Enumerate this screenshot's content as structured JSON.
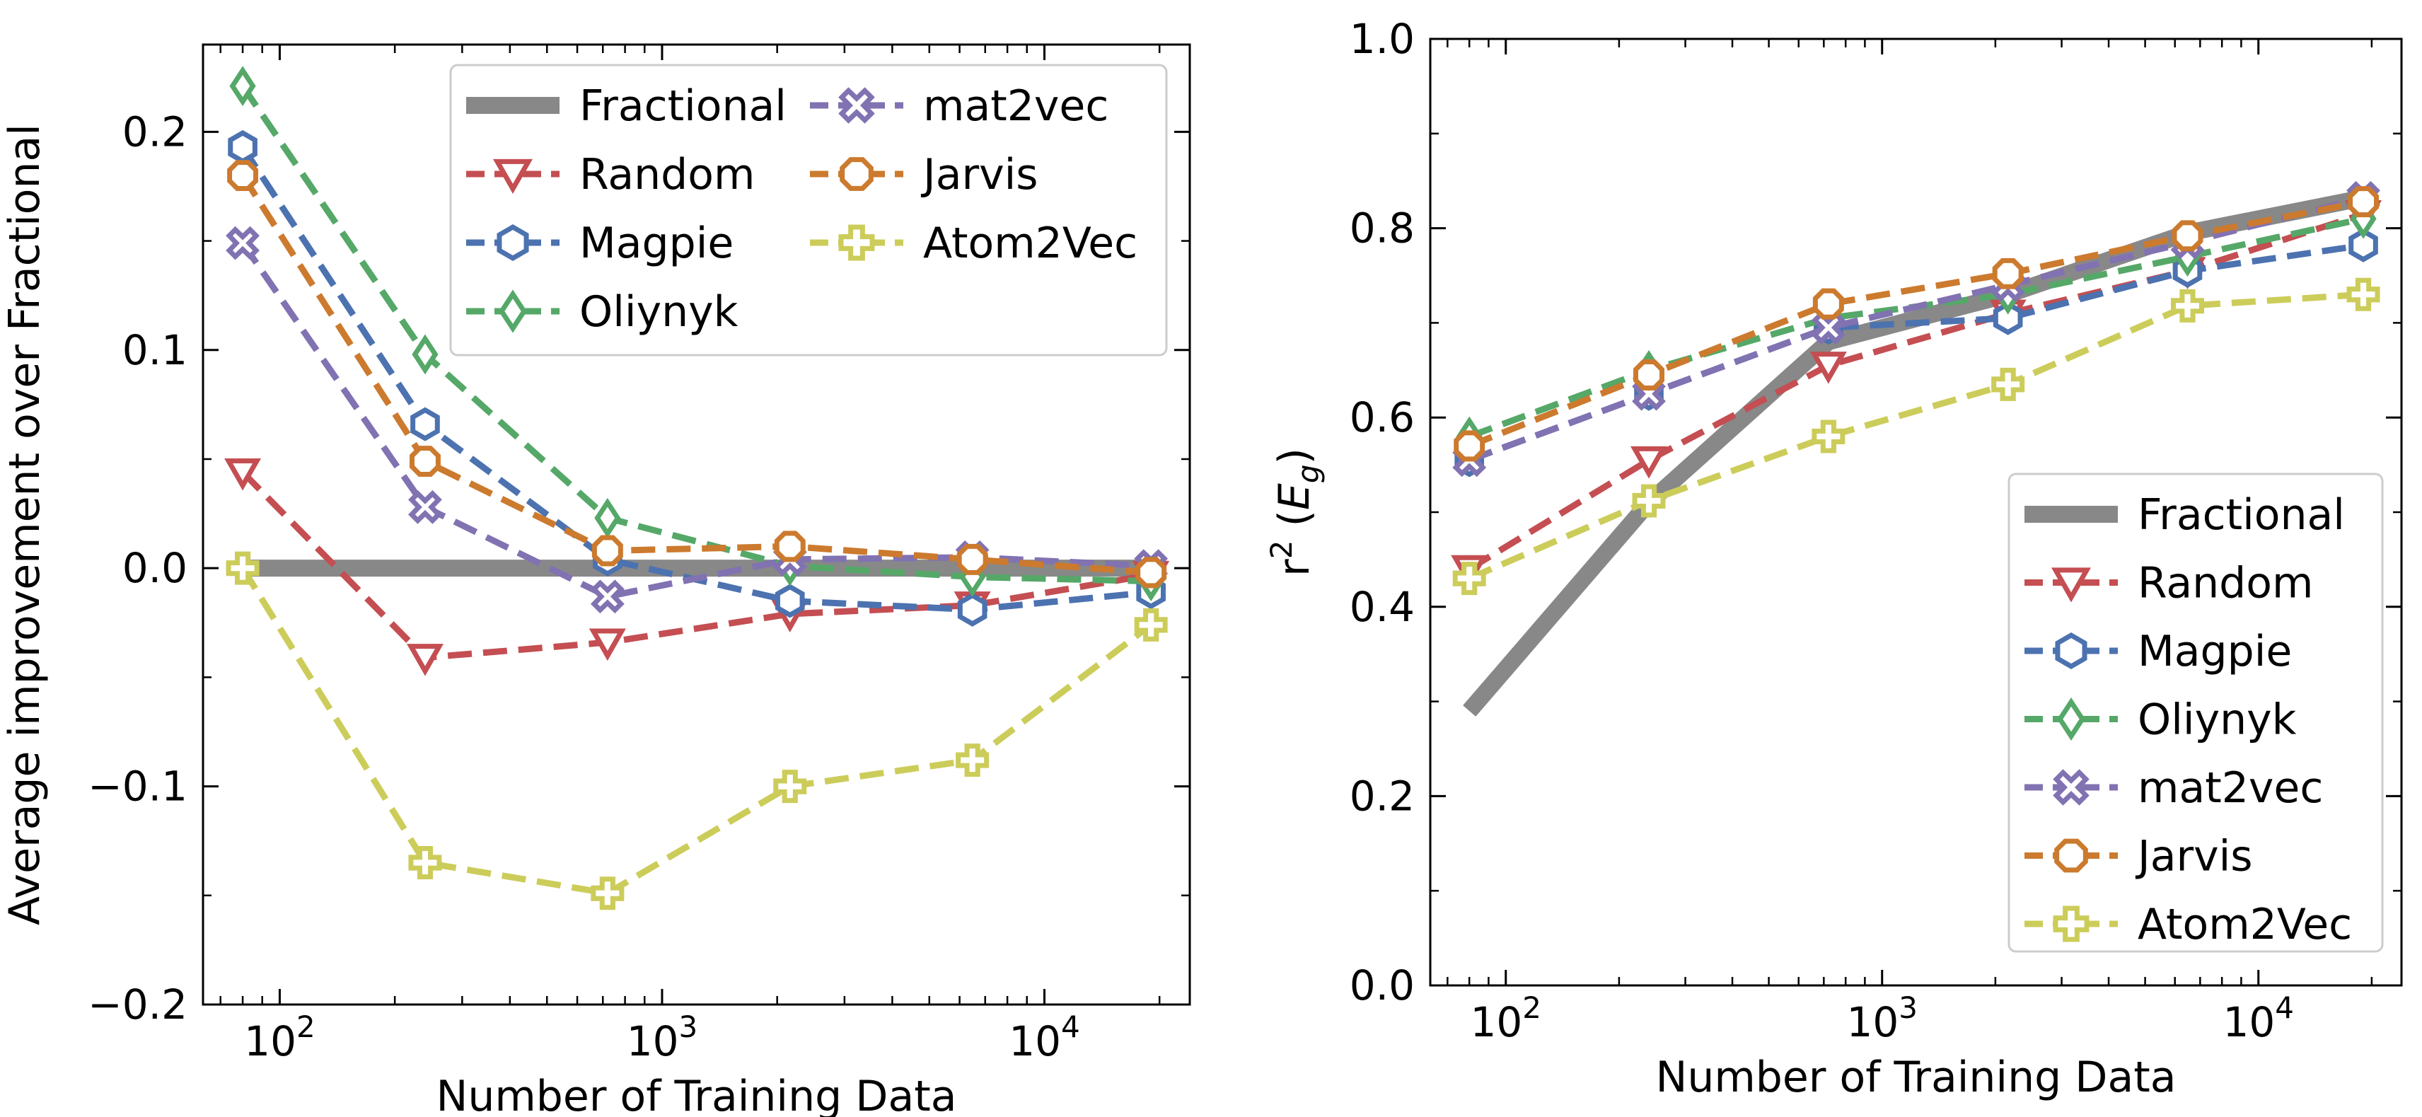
{
  "chart_data": [
    {
      "type": "line",
      "xscale": "log",
      "xlim": [
        63,
        24000
      ],
      "ylim": [
        -0.2,
        0.24
      ],
      "xlabel": "Number of Training Data",
      "ylabel": "Average improvement over Fractional",
      "xticks": [
        100,
        1000,
        10000
      ],
      "yticks": [
        -0.2,
        -0.1,
        0.0,
        0.1,
        0.2
      ],
      "ytick_labels": [
        "−0.2",
        "−0.1",
        "0.0",
        "0.1",
        "0.2"
      ],
      "legend": "top-right, 2 columns",
      "grid": false,
      "x": [
        80,
        240,
        720,
        2160,
        6480,
        19000
      ],
      "series": [
        {
          "name": "Fractional",
          "color": "#888888",
          "style": "solid",
          "marker": "none",
          "values": [
            0,
            0,
            0,
            0,
            0,
            0
          ]
        },
        {
          "name": "Random",
          "color": "#C44E52",
          "style": "dashed",
          "marker": "triangle-down",
          "values": [
            0.044,
            -0.041,
            -0.034,
            -0.021,
            -0.017,
            -0.003
          ]
        },
        {
          "name": "Magpie",
          "color": "#4C72B0",
          "style": "dashed",
          "marker": "hexagon",
          "values": [
            0.193,
            0.066,
            0.004,
            -0.015,
            -0.019,
            -0.011
          ]
        },
        {
          "name": "Oliynyk",
          "color": "#55A868",
          "style": "dashed",
          "marker": "diamond",
          "values": [
            0.221,
            0.098,
            0.023,
            0.001,
            -0.004,
            -0.006
          ]
        },
        {
          "name": "mat2vec",
          "color": "#8172B2",
          "style": "dashed",
          "marker": "x-circle",
          "values": [
            0.149,
            0.028,
            -0.013,
            0.004,
            0.005,
            0.001
          ]
        },
        {
          "name": "Jarvis",
          "color": "#CC7A2E",
          "style": "dashed",
          "marker": "octagon",
          "values": [
            0.18,
            0.049,
            0.008,
            0.01,
            0.004,
            -0.002
          ]
        },
        {
          "name": "Atom2Vec",
          "color": "#CCCC5A",
          "style": "dashed",
          "marker": "plus",
          "values": [
            0.0,
            -0.135,
            -0.149,
            -0.1,
            -0.088,
            -0.026
          ]
        }
      ]
    },
    {
      "type": "line",
      "xscale": "log",
      "xlim": [
        63,
        24000
      ],
      "ylim": [
        0.0,
        1.0
      ],
      "xlabel": "Number of Training Data",
      "ylabel": "r² (E_g)",
      "ylabel_parts": {
        "base": "r",
        "sup": "2",
        "mid": " (",
        "var": "E",
        "sub": "g",
        "end": ")"
      },
      "xticks": [
        100,
        1000,
        10000
      ],
      "yticks": [
        0.0,
        0.2,
        0.4,
        0.6,
        0.8,
        1.0
      ],
      "ytick_labels": [
        "0.0",
        "0.2",
        "0.4",
        "0.6",
        "0.8",
        "1.0"
      ],
      "legend": "bottom-right, 1 column",
      "grid": false,
      "x": [
        80,
        240,
        720,
        2160,
        6480,
        19000
      ],
      "series": [
        {
          "name": "Fractional",
          "color": "#888888",
          "style": "solid",
          "marker": "none",
          "values": [
            0.29,
            0.51,
            0.68,
            0.73,
            0.795,
            0.832
          ]
        },
        {
          "name": "Random",
          "color": "#C44E52",
          "style": "dashed",
          "marker": "triangle-down",
          "values": [
            0.44,
            0.555,
            0.655,
            0.71,
            0.755,
            0.815
          ]
        },
        {
          "name": "Magpie",
          "color": "#4C72B0",
          "style": "dashed",
          "marker": "hexagon",
          "values": [
            0.555,
            0.625,
            0.695,
            0.705,
            0.755,
            0.782
          ]
        },
        {
          "name": "Oliynyk",
          "color": "#55A868",
          "style": "dashed",
          "marker": "diamond",
          "values": [
            0.58,
            0.65,
            0.705,
            0.73,
            0.77,
            0.81
          ]
        },
        {
          "name": "mat2vec",
          "color": "#8172B2",
          "style": "dashed",
          "marker": "x-circle",
          "values": [
            0.555,
            0.625,
            0.695,
            0.74,
            0.785,
            0.832
          ]
        },
        {
          "name": "Jarvis",
          "color": "#CC7A2E",
          "style": "dashed",
          "marker": "octagon",
          "values": [
            0.57,
            0.645,
            0.72,
            0.752,
            0.792,
            0.828
          ]
        },
        {
          "name": "Atom2Vec",
          "color": "#CCCC5A",
          "style": "dashed",
          "marker": "plus",
          "values": [
            0.43,
            0.512,
            0.58,
            0.635,
            0.718,
            0.73
          ]
        }
      ]
    }
  ]
}
